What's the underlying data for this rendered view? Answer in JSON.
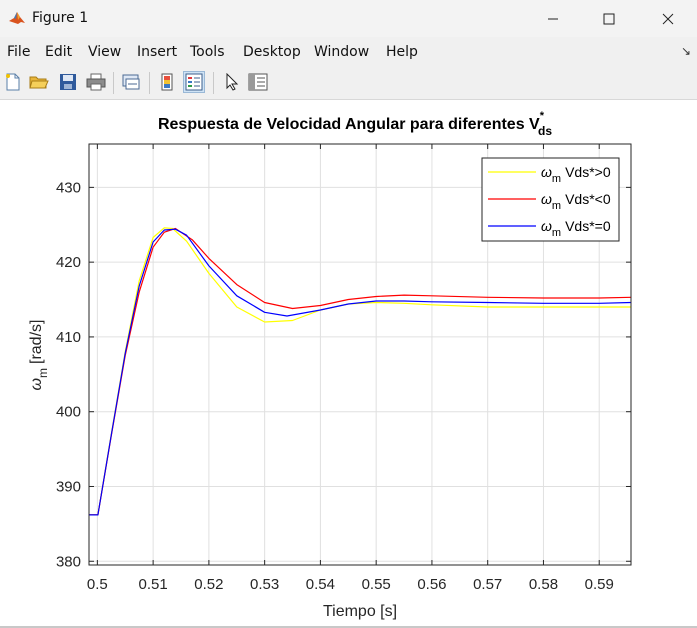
{
  "window": {
    "title": "Figure 1",
    "controls": [
      "minimize",
      "maximize",
      "close"
    ]
  },
  "menubar": {
    "items": [
      "File",
      "Edit",
      "View",
      "Insert",
      "Tools",
      "Desktop",
      "Window",
      "Help"
    ]
  },
  "toolbar": {
    "buttons": [
      "new-figure-icon",
      "open-file-icon",
      "save-icon",
      "print-icon",
      "link-plot-icon",
      "insert-colorbar-icon",
      "insert-legend-icon",
      "edit-plot-arrow-icon",
      "property-inspector-icon"
    ]
  },
  "colors": {
    "figure_bg": "#ffffff",
    "series_yellow": "#ffff00",
    "series_red": "#ff0000",
    "series_blue": "#0000ff",
    "grid": "#e0e0e0"
  },
  "chart_data": {
    "type": "line",
    "title_main": "Respuesta de Velocidad Angular para diferentes V",
    "title_sub": "ds",
    "title_sup": "*",
    "xlabel": "Tiempo [s]",
    "ylabel_sym": "ω",
    "ylabel_sub": "m",
    "ylabel_unit": "[rad/s]",
    "xlim": [
      0.4985,
      0.5957
    ],
    "ylim": [
      379.5,
      435.8
    ],
    "xticks": [
      0.5,
      0.51,
      0.52,
      0.53,
      0.54,
      0.55,
      0.56,
      0.57,
      0.58,
      0.59
    ],
    "xtick_labels": [
      "0.5",
      "0.51",
      "0.52",
      "0.53",
      "0.54",
      "0.55",
      "0.56",
      "0.57",
      "0.58",
      "0.59"
    ],
    "yticks": [
      380,
      390,
      400,
      410,
      420,
      430
    ],
    "ytick_labels": [
      "380",
      "390",
      "400",
      "410",
      "420",
      "430"
    ],
    "grid": true,
    "legend_position": "top-right",
    "series": [
      {
        "name": "Vds*>0",
        "legend_sym": "ω",
        "legend_sub": "m",
        "color": "#ffff00",
        "x": [
          0.4985,
          0.4999,
          0.5001,
          0.5025,
          0.505,
          0.5075,
          0.51,
          0.512,
          0.5135,
          0.516,
          0.52,
          0.525,
          0.53,
          0.535,
          0.54,
          0.545,
          0.55,
          0.555,
          0.56,
          0.57,
          0.58,
          0.59,
          0.5957
        ],
        "y": [
          386.2,
          386.2,
          386.2,
          397.0,
          408.0,
          417.5,
          423.3,
          424.6,
          424.5,
          422.8,
          418.5,
          414.0,
          412.0,
          412.2,
          413.6,
          414.4,
          414.6,
          414.5,
          414.3,
          414.0,
          414.0,
          414.0,
          414.0
        ]
      },
      {
        "name": "Vds*<0",
        "legend_sym": "ω",
        "legend_sub": "m",
        "color": "#ff0000",
        "x": [
          0.4985,
          0.4999,
          0.5001,
          0.5025,
          0.505,
          0.5075,
          0.51,
          0.512,
          0.514,
          0.517,
          0.52,
          0.525,
          0.53,
          0.535,
          0.54,
          0.545,
          0.55,
          0.555,
          0.56,
          0.57,
          0.58,
          0.59,
          0.5957
        ],
        "y": [
          386.2,
          386.2,
          386.2,
          396.8,
          407.5,
          416.0,
          422.0,
          424.0,
          424.5,
          423.0,
          420.5,
          417.0,
          414.6,
          413.8,
          414.2,
          415.0,
          415.4,
          415.6,
          415.5,
          415.3,
          415.2,
          415.2,
          415.3
        ]
      },
      {
        "name": "Vds*=0",
        "legend_sym": "ω",
        "legend_sub": "m",
        "color": "#0000ff",
        "x": [
          0.4985,
          0.4999,
          0.5001,
          0.5025,
          0.505,
          0.5075,
          0.51,
          0.512,
          0.514,
          0.516,
          0.52,
          0.525,
          0.53,
          0.534,
          0.54,
          0.545,
          0.55,
          0.555,
          0.56,
          0.57,
          0.58,
          0.59,
          0.5957
        ],
        "y": [
          386.2,
          386.2,
          386.2,
          396.9,
          407.8,
          416.8,
          422.7,
          424.3,
          424.4,
          423.6,
          419.5,
          415.5,
          413.3,
          412.8,
          413.6,
          414.4,
          414.8,
          414.8,
          414.7,
          414.6,
          414.5,
          414.5,
          414.6
        ]
      }
    ]
  }
}
